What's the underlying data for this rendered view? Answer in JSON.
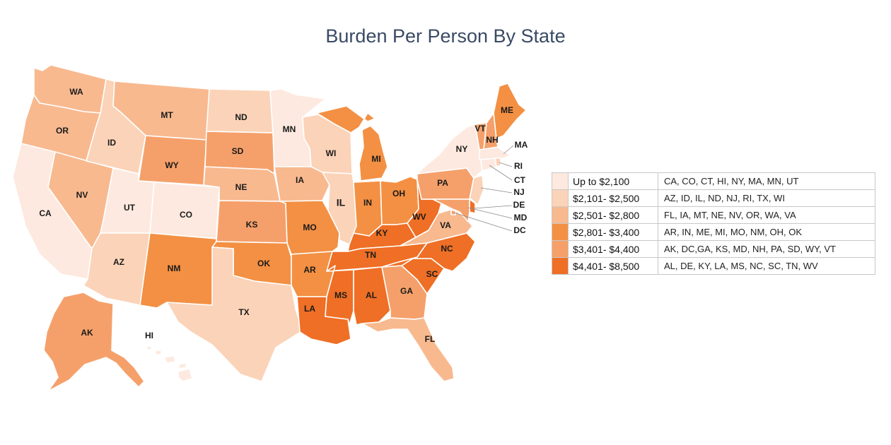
{
  "title": "Burden Per Person By State",
  "colors": {
    "t1": "#fde9df",
    "t2": "#fbd3b8",
    "t3": "#f8b98f",
    "t4": "#f39043",
    "t5": "#f5a06a",
    "t6": "#ee6f25"
  },
  "legend": [
    {
      "tier": "t1",
      "range": "Up to $2,100",
      "states": "CA, CO, CT, HI, NY, MA, MN, UT"
    },
    {
      "tier": "t2",
      "range": "$2,101- $2,500",
      "states": "AZ, ID, IL, ND, NJ, RI, TX, WI"
    },
    {
      "tier": "t3",
      "range": "$2,501- $2,800",
      "states": "FL, IA, MT, NE, NV, OR, WA, VA"
    },
    {
      "tier": "t4",
      "range": "$2,801- $3,400",
      "states": "AR, IN, ME, MI, MO, NM, OH, OK"
    },
    {
      "tier": "t5",
      "range": "$3,401- $4,400",
      "states": "AK, DC,GA, KS, MD, NH, PA, SD, WY, VT"
    },
    {
      "tier": "t6",
      "range": "$4,401- $8,500",
      "states": "AL, DE, KY, LA, MS, NC, SC, TN, WV"
    }
  ],
  "states": {
    "WA": {
      "label": "WA",
      "tier": "t3"
    },
    "OR": {
      "label": "OR",
      "tier": "t3"
    },
    "CA": {
      "label": "CA",
      "tier": "t1"
    },
    "NV": {
      "label": "NV",
      "tier": "t3"
    },
    "ID": {
      "label": "ID",
      "tier": "t2"
    },
    "MT": {
      "label": "MT",
      "tier": "t3"
    },
    "WY": {
      "label": "WY",
      "tier": "t5"
    },
    "UT": {
      "label": "UT",
      "tier": "t1"
    },
    "CO": {
      "label": "CO",
      "tier": "t1"
    },
    "AZ": {
      "label": "AZ",
      "tier": "t2"
    },
    "NM": {
      "label": "NM",
      "tier": "t4"
    },
    "ND": {
      "label": "ND",
      "tier": "t2"
    },
    "SD": {
      "label": "SD",
      "tier": "t5"
    },
    "NE": {
      "label": "NE",
      "tier": "t3"
    },
    "KS": {
      "label": "KS",
      "tier": "t5"
    },
    "OK": {
      "label": "OK",
      "tier": "t4"
    },
    "TX": {
      "label": "TX",
      "tier": "t2"
    },
    "MN": {
      "label": "MN",
      "tier": "t1"
    },
    "IA": {
      "label": "IA",
      "tier": "t3"
    },
    "MO": {
      "label": "MO",
      "tier": "t4"
    },
    "AR": {
      "label": "AR",
      "tier": "t4"
    },
    "LA": {
      "label": "LA",
      "tier": "t6"
    },
    "WI": {
      "label": "WI",
      "tier": "t2"
    },
    "IL": {
      "label": "IL",
      "tier": "t2"
    },
    "MI": {
      "label": "MI",
      "tier": "t4"
    },
    "IN": {
      "label": "IN",
      "tier": "t4"
    },
    "OH": {
      "label": "OH",
      "tier": "t4"
    },
    "KY": {
      "label": "KY",
      "tier": "t6"
    },
    "TN": {
      "label": "TN",
      "tier": "t6"
    },
    "MS": {
      "label": "MS",
      "tier": "t6"
    },
    "AL": {
      "label": "AL",
      "tier": "t6"
    },
    "GA": {
      "label": "GA",
      "tier": "t5"
    },
    "FL": {
      "label": "FL",
      "tier": "t3"
    },
    "SC": {
      "label": "SC",
      "tier": "t6"
    },
    "NC": {
      "label": "NC",
      "tier": "t6"
    },
    "VA": {
      "label": "VA",
      "tier": "t3"
    },
    "WV": {
      "label": "WV",
      "tier": "t6"
    },
    "PA": {
      "label": "PA",
      "tier": "t5"
    },
    "NY": {
      "label": "NY",
      "tier": "t1"
    },
    "VT": {
      "label": "VT",
      "tier": "t5"
    },
    "NH": {
      "label": "NH",
      "tier": "t5"
    },
    "ME": {
      "label": "ME",
      "tier": "t4"
    },
    "MA": {
      "label": "MA",
      "tier": "t1"
    },
    "RI": {
      "label": "RI",
      "tier": "t2"
    },
    "CT": {
      "label": "CT",
      "tier": "t1"
    },
    "NJ": {
      "label": "NJ",
      "tier": "t2"
    },
    "DE": {
      "label": "DE",
      "tier": "t6"
    },
    "MD": {
      "label": "MD",
      "tier": "t5"
    },
    "DC": {
      "label": "DC",
      "tier": "t5"
    },
    "AK": {
      "label": "AK",
      "tier": "t5"
    },
    "HI": {
      "label": "HI",
      "tier": "t1"
    }
  }
}
